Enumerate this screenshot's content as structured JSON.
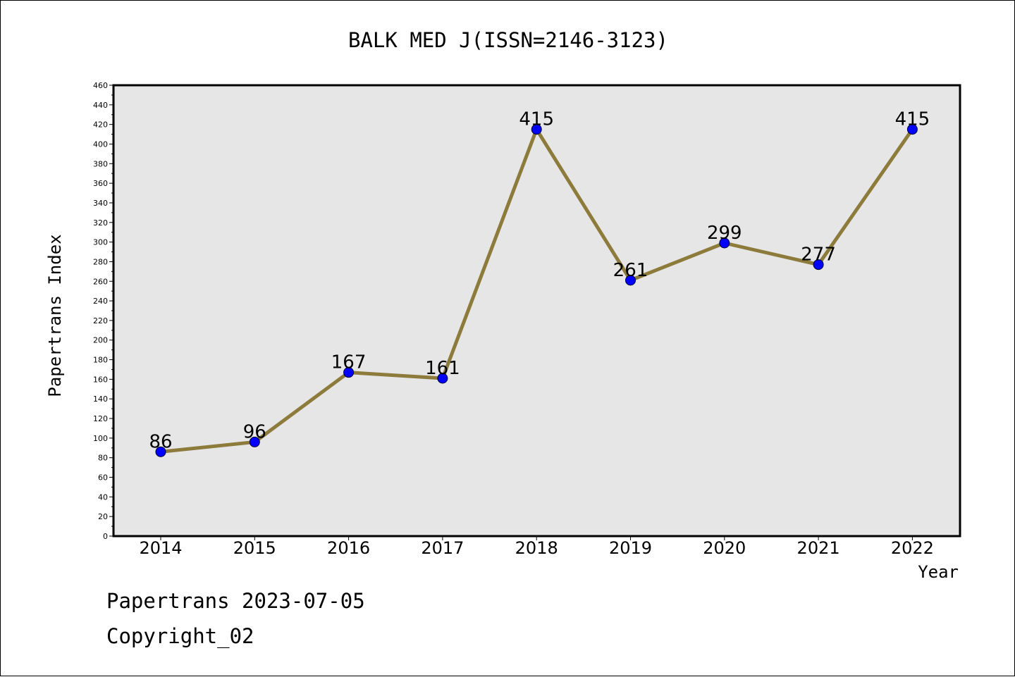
{
  "chart_data": {
    "type": "line",
    "title": "BALK MED J(ISSN=2146-3123)",
    "xlabel": "Year",
    "ylabel": "Papertrans Index",
    "categories": [
      "2014",
      "2015",
      "2016",
      "2017",
      "2018",
      "2019",
      "2020",
      "2021",
      "2022"
    ],
    "series": [
      {
        "values": [
          86,
          96,
          167,
          161,
          415,
          261,
          299,
          277,
          415
        ]
      }
    ],
    "data_labels": [
      "86",
      "96",
      "167",
      "161",
      "415",
      "261",
      "299",
      "277",
      "415"
    ],
    "ylim": [
      0,
      460
    ],
    "y_ticks": [
      "0",
      "20",
      "40",
      "60",
      "80",
      "100",
      "120",
      "140",
      "160",
      "180",
      "200",
      "220",
      "240",
      "260",
      "280",
      "300",
      "320",
      "340",
      "360",
      "380",
      "400",
      "420",
      "440",
      "460"
    ],
    "grid": false,
    "legend": "none",
    "colors": {
      "line": "#8c7b3a",
      "marker": "#0000ff",
      "plot_background": "#e6e6e6"
    }
  },
  "footer": {
    "line1": "Papertrans 2023-07-05",
    "line2": "Copyright_02"
  }
}
